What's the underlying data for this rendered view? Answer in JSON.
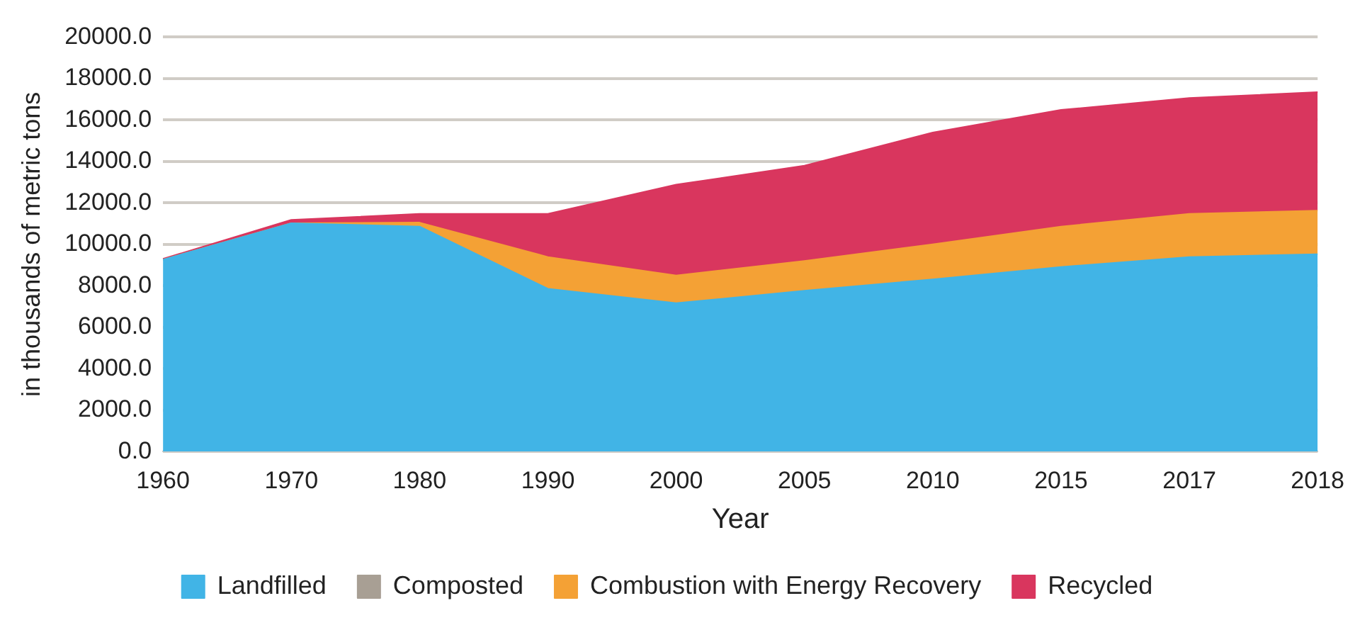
{
  "chart_data": {
    "type": "area",
    "stacked": true,
    "xlabel": "Year",
    "ylabel": "in thousands of metric tons",
    "categories": [
      "1960",
      "1970",
      "1980",
      "1990",
      "2000",
      "2005",
      "2010",
      "2015",
      "2017",
      "2018"
    ],
    "series": [
      {
        "name": "Landfilled",
        "color": "#41b4e6",
        "values": [
          9260,
          11020,
          10860,
          7860,
          7160,
          7760,
          8310,
          8910,
          9390,
          9520
        ]
      },
      {
        "name": "Composted",
        "color": "#a89f94",
        "values": [
          null,
          null,
          null,
          null,
          null,
          null,
          null,
          null,
          null,
          null
        ]
      },
      {
        "name": "Combustion with Energy Recovery",
        "color": "#f4a135",
        "values": [
          0,
          0,
          190,
          1530,
          1340,
          1440,
          1690,
          1950,
          2080,
          2110
        ]
      },
      {
        "name": "Recycled",
        "color": "#d9365e",
        "values": [
          40,
          160,
          420,
          2080,
          4380,
          4600,
          5400,
          5630,
          5590,
          5720
        ]
      }
    ],
    "ylim": [
      0,
      20000
    ],
    "yticks": [
      {
        "value": 0,
        "label": "0.0"
      },
      {
        "value": 2000,
        "label": "2000.0"
      },
      {
        "value": 4000,
        "label": "4000.0"
      },
      {
        "value": 6000,
        "label": "6000.0"
      },
      {
        "value": 8000,
        "label": "8000.0"
      },
      {
        "value": 10000,
        "label": "10000.0"
      },
      {
        "value": 12000,
        "label": "12000.0"
      },
      {
        "value": 14000,
        "label": "14000.0"
      },
      {
        "value": 16000,
        "label": "16000.0"
      },
      {
        "value": 18000,
        "label": "18000.0"
      },
      {
        "value": 20000,
        "label": "20000.0"
      }
    ],
    "grid": "y",
    "legend": "bottom"
  }
}
